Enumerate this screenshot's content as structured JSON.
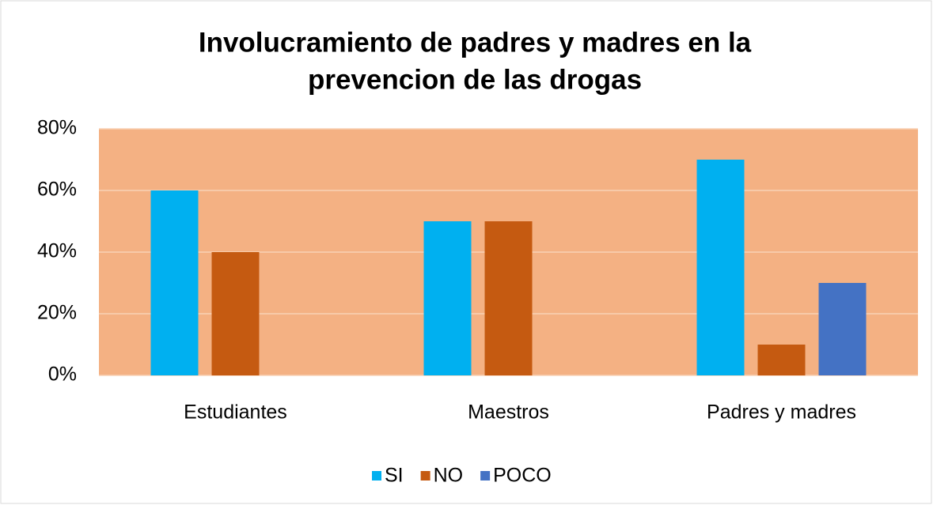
{
  "chart_data": {
    "type": "bar",
    "title": [
      "Involucramiento de padres y madres en la",
      "prevencion de las drogas"
    ],
    "categories": [
      "Estudiantes",
      "Maestros",
      "Padres y madres"
    ],
    "series": [
      {
        "name": "SI",
        "color": "#00b0f0",
        "values": [
          60,
          50,
          70
        ]
      },
      {
        "name": "NO",
        "color": "#c55a11",
        "values": [
          40,
          50,
          10
        ]
      },
      {
        "name": "POCO",
        "color": "#4472c4",
        "values": [
          0,
          0,
          30
        ]
      }
    ],
    "ylim": [
      0,
      80
    ],
    "yticks": [
      {
        "value": 0,
        "label": "0%"
      },
      {
        "value": 20,
        "label": "20%"
      },
      {
        "value": 40,
        "label": "40%"
      },
      {
        "value": 60,
        "label": "60%"
      },
      {
        "value": 80,
        "label": "80%"
      }
    ],
    "grid": true,
    "plot_background": "#f4b183",
    "legend": "bottom"
  }
}
